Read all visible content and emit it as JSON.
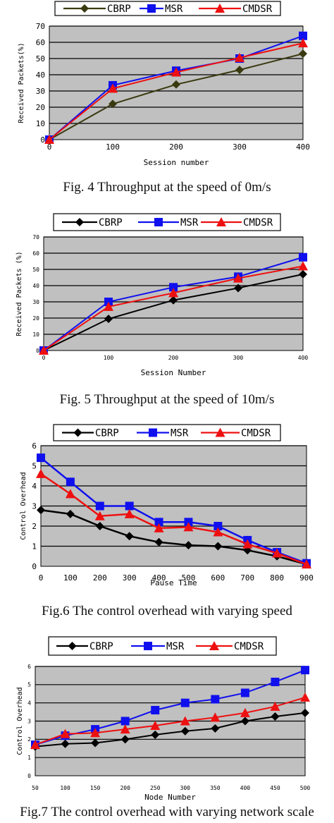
{
  "charts": [
    {
      "type": "line",
      "x": [
        0,
        100,
        200,
        300,
        400
      ],
      "xlim": [
        0,
        400
      ],
      "ylim": [
        0,
        70
      ],
      "yticks": [
        0,
        10,
        20,
        30,
        40,
        50,
        60,
        70
      ],
      "xticks": [
        0,
        100,
        200,
        300,
        400
      ],
      "xlabel": "Session number",
      "ylabel": "Received Packets(%)",
      "grid": true,
      "legend_position": "top",
      "series": [
        {
          "name": "CBRP",
          "color": "#3a3a10",
          "marker": "diamond",
          "values": [
            0,
            22,
            34,
            43,
            53
          ]
        },
        {
          "name": "MSR",
          "color": "#1010ee",
          "marker": "square",
          "values": [
            0,
            33.5,
            42.5,
            50,
            64
          ]
        },
        {
          "name": "CMDSR",
          "color": "#ee1010",
          "marker": "triangle",
          "values": [
            0,
            31.5,
            41.5,
            50.5,
            59.5
          ]
        }
      ],
      "caption": "Fig. 4 Throughput at the speed of 0m/s"
    },
    {
      "type": "line",
      "x": [
        0,
        100,
        200,
        300,
        400
      ],
      "xlim": [
        0,
        400
      ],
      "ylim": [
        0,
        70
      ],
      "yticks": [
        0,
        10,
        20,
        30,
        40,
        50,
        60,
        70
      ],
      "xticks": [
        0,
        100,
        200,
        300,
        400
      ],
      "xlabel": "Session Number",
      "ylabel": "Received Packets (%)",
      "grid": true,
      "legend_position": "top",
      "series": [
        {
          "name": "CBRP",
          "color": "#000000",
          "marker": "diamond",
          "values": [
            0,
            19.5,
            31,
            38.5,
            47
          ]
        },
        {
          "name": "MSR",
          "color": "#1010ee",
          "marker": "square",
          "values": [
            0,
            30,
            39,
            45.5,
            57.5
          ]
        },
        {
          "name": "CMDSR",
          "color": "#ee1010",
          "marker": "triangle",
          "values": [
            0,
            27,
            35.5,
            44.5,
            52
          ]
        }
      ],
      "caption": "Fig. 5 Throughput at the speed of 10m/s"
    },
    {
      "type": "line",
      "x": [
        0,
        100,
        200,
        300,
        400,
        500,
        600,
        700,
        800,
        900
      ],
      "xlim": [
        0,
        900
      ],
      "ylim": [
        0,
        6
      ],
      "yticks": [
        0,
        1,
        2,
        3,
        4,
        5,
        6
      ],
      "xticks": [
        0,
        100,
        200,
        300,
        400,
        500,
        600,
        700,
        800,
        900
      ],
      "xlabel": "Pause Time",
      "ylabel": "Control Overhead",
      "grid": true,
      "legend_position": "top",
      "series": [
        {
          "name": "CBRP",
          "color": "#000000",
          "marker": "diamond",
          "values": [
            2.8,
            2.6,
            2.0,
            1.5,
            1.2,
            1.05,
            1.0,
            0.8,
            0.5,
            0.1
          ]
        },
        {
          "name": "MSR",
          "color": "#1010ee",
          "marker": "square",
          "values": [
            5.4,
            4.2,
            3.0,
            3.0,
            2.2,
            2.2,
            2.0,
            1.3,
            0.7,
            0.15
          ]
        },
        {
          "name": "CMDSR",
          "color": "#ee1010",
          "marker": "triangle",
          "values": [
            4.6,
            3.6,
            2.5,
            2.6,
            1.9,
            1.95,
            1.7,
            1.1,
            0.65,
            0.1
          ]
        }
      ],
      "caption": "Fig.6 The control overhead with varying speed"
    },
    {
      "type": "line",
      "x": [
        50,
        100,
        150,
        200,
        250,
        300,
        350,
        400,
        450,
        500
      ],
      "xlim": [
        50,
        500
      ],
      "ylim": [
        0,
        6
      ],
      "yticks": [
        0,
        1,
        2,
        3,
        4,
        5,
        6
      ],
      "xticks": [
        50,
        100,
        150,
        200,
        250,
        300,
        350,
        400,
        450,
        500
      ],
      "xlabel": "Node Number",
      "ylabel": "Control Overhead",
      "grid": true,
      "legend_position": "top",
      "series": [
        {
          "name": "CBRP",
          "color": "#000000",
          "marker": "diamond",
          "values": [
            1.6,
            1.75,
            1.8,
            2.0,
            2.25,
            2.45,
            2.6,
            3.0,
            3.25,
            3.45
          ]
        },
        {
          "name": "MSR",
          "color": "#1010ee",
          "marker": "square",
          "values": [
            1.7,
            2.2,
            2.55,
            3.0,
            3.6,
            4.0,
            4.2,
            4.55,
            5.15,
            5.8
          ]
        },
        {
          "name": "CMDSR",
          "color": "#ee1010",
          "marker": "triangle",
          "values": [
            1.7,
            2.3,
            2.35,
            2.55,
            2.75,
            3.0,
            3.2,
            3.45,
            3.8,
            4.3
          ]
        }
      ],
      "caption": "Fig.7 The control overhead with varying network scale"
    }
  ]
}
